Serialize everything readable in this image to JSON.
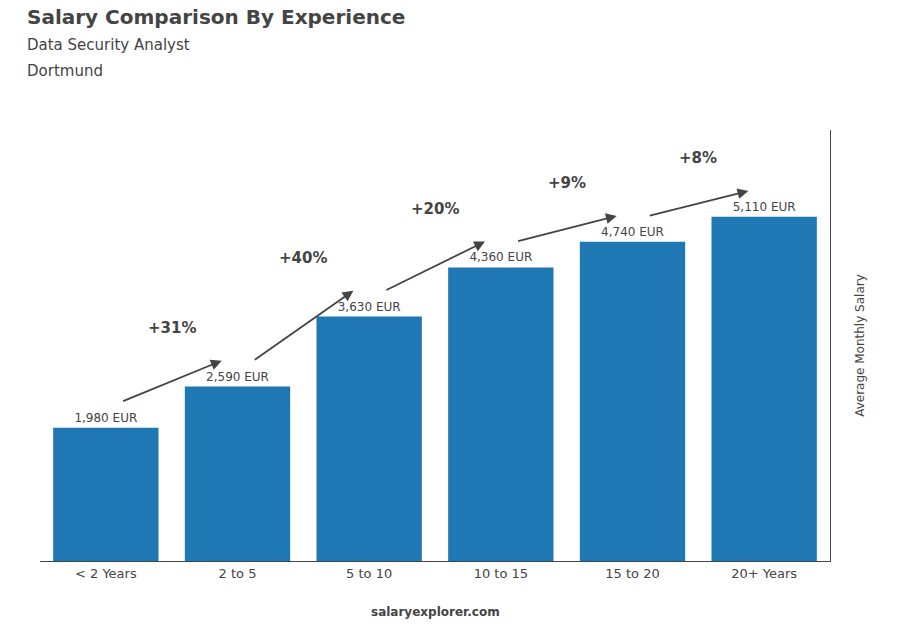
{
  "chart_data": {
    "type": "bar",
    "title": "Salary Comparison By Experience",
    "subtitle": [
      "Data Security Analyst",
      "Dortmund"
    ],
    "ylabel": "Average Monthly Salary",
    "categories": [
      "< 2 Years",
      "2 to 5",
      "5 to 10",
      "10 to 15",
      "15 to 20",
      "20+ Years"
    ],
    "values": [
      1980,
      2590,
      3630,
      4360,
      4740,
      5110
    ],
    "value_labels": [
      "1,980 EUR",
      "2,590 EUR",
      "3,630 EUR",
      "4,360 EUR",
      "4,740 EUR",
      "5,110 EUR"
    ],
    "data_labels": true,
    "annotations": [
      {
        "text": "+31%",
        "from": "< 2 Years",
        "to": "2 to 5"
      },
      {
        "text": "+40%",
        "from": "2 to 5",
        "to": "5 to 10"
      },
      {
        "text": "+20%",
        "from": "5 to 10",
        "to": "10 to 15"
      },
      {
        "text": "+9%",
        "from": "10 to 15",
        "to": "15 to 20"
      },
      {
        "text": "+8%",
        "from": "15 to 20",
        "to": "20+ Years"
      }
    ],
    "source": "salaryexplorer.com",
    "ylim": [
      0,
      6400
    ],
    "tick_labels": "x",
    "grid": false
  }
}
